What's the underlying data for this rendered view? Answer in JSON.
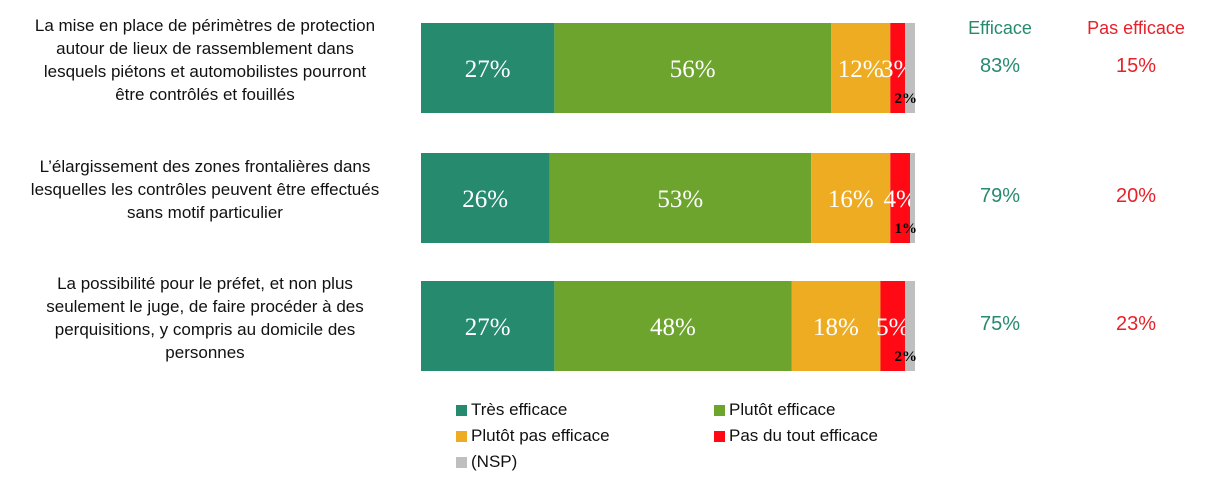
{
  "chart_data": {
    "type": "bar",
    "orientation": "horizontal",
    "stacked": true,
    "categories": [
      "La mise en place de périmètres de protection autour de lieux de rassemblement dans lesquels piétons et automobilistes pourront être contrôlés et fouillés",
      "L’élargissement des zones frontalières dans lesquelles les contrôles peuvent être effectués sans motif particulier",
      "La possibilité pour le préfet, et non plus seulement le juge, de faire procéder à des perquisitions, y compris au domicile des personnes"
    ],
    "category_lines": [
      [
        "La mise en place de périmètres de protection",
        "autour de lieux de rassemblement dans",
        "lesquels piétons et automobilistes pourront",
        "être contrôlés et fouillés"
      ],
      [
        "L’élargissement des zones frontalières dans",
        "lesquelles les contrôles peuvent être effectués",
        "sans motif particulier"
      ],
      [
        "La possibilité pour le préfet, et non plus",
        "seulement le juge, de faire procéder à des",
        "perquisitions, y compris au domicile des",
        "personnes"
      ]
    ],
    "series": [
      {
        "name": "Très efficace",
        "color": "#268A6F",
        "values": [
          27,
          26,
          27
        ]
      },
      {
        "name": "Plutôt efficace",
        "color": "#6DA42E",
        "values": [
          56,
          53,
          48
        ]
      },
      {
        "name": "Plutôt pas efficace",
        "color": "#EDAC22",
        "values": [
          12,
          16,
          18
        ]
      },
      {
        "name": "Pas du tout efficace",
        "color": "#FF0A14",
        "values": [
          3,
          4,
          5
        ]
      },
      {
        "name": "(NSP)",
        "color": "#BFBFBF",
        "values": [
          2,
          1,
          2
        ]
      }
    ],
    "value_suffix": "%",
    "xlim": [
      0,
      100
    ],
    "legend_position": "bottom",
    "summary_columns": [
      {
        "header": "Efficace",
        "color": "#268A6F",
        "values": [
          "83%",
          "79%",
          "75%"
        ]
      },
      {
        "header": "Pas efficace",
        "color": "#E8202A",
        "values": [
          "15%",
          "20%",
          "23%"
        ]
      }
    ]
  }
}
